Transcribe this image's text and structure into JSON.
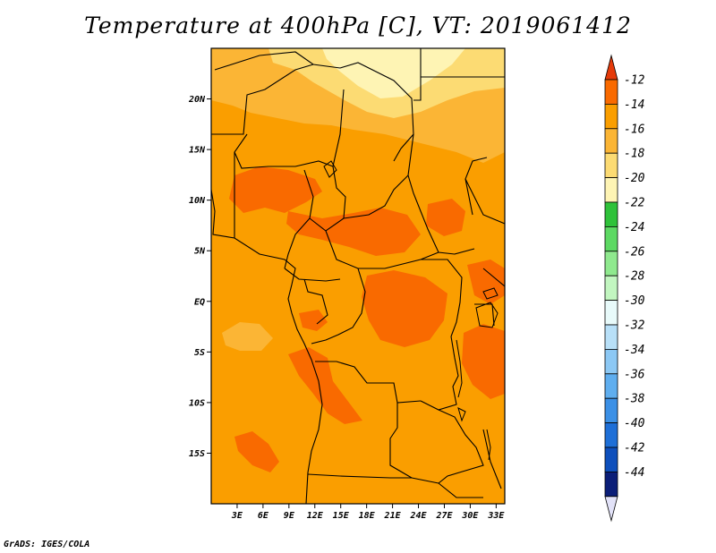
{
  "title": "Temperature at 400hPa [C], VT: 2019061412",
  "footer": "GrADS: IGES/COLA",
  "map": {
    "lon_range": [
      0,
      34
    ],
    "lat_range": [
      -20,
      25
    ],
    "lon_ticks": [
      "3E",
      "6E",
      "9E",
      "12E",
      "15E",
      "18E",
      "21E",
      "24E",
      "27E",
      "30E",
      "33E"
    ],
    "lat_ticks": [
      "20N",
      "15N",
      "10N",
      "5N",
      "EQ",
      "5S",
      "10S",
      "15S"
    ],
    "field_colors": {
      "m12_m14": "#F96A00",
      "m14_m16": "#FA9E00",
      "m16_m18": "#FBB535",
      "m18_m20": "#FCDB73",
      "m20_m22": "#FEF4B4"
    }
  },
  "colorbar": {
    "labels": [
      "-12",
      "-14",
      "-16",
      "-18",
      "-20",
      "-22",
      "-24",
      "-26",
      "-28",
      "-30",
      "-32",
      "-34",
      "-36",
      "-38",
      "-40",
      "-42",
      "-44"
    ],
    "top_color": "#E53A0A",
    "bottom_color": "#E2E2F8",
    "colors": [
      "#F96A00",
      "#FA9E00",
      "#FBB535",
      "#FCDB73",
      "#FEF4B4",
      "#2FC23A",
      "#5DD963",
      "#8FE98E",
      "#C2F6C0",
      "#E8FAFA",
      "#B8E0F8",
      "#8CC8F4",
      "#5FAEEF",
      "#3B90E6",
      "#1E6FD7",
      "#0E4FBC",
      "#0B1E78"
    ]
  }
}
